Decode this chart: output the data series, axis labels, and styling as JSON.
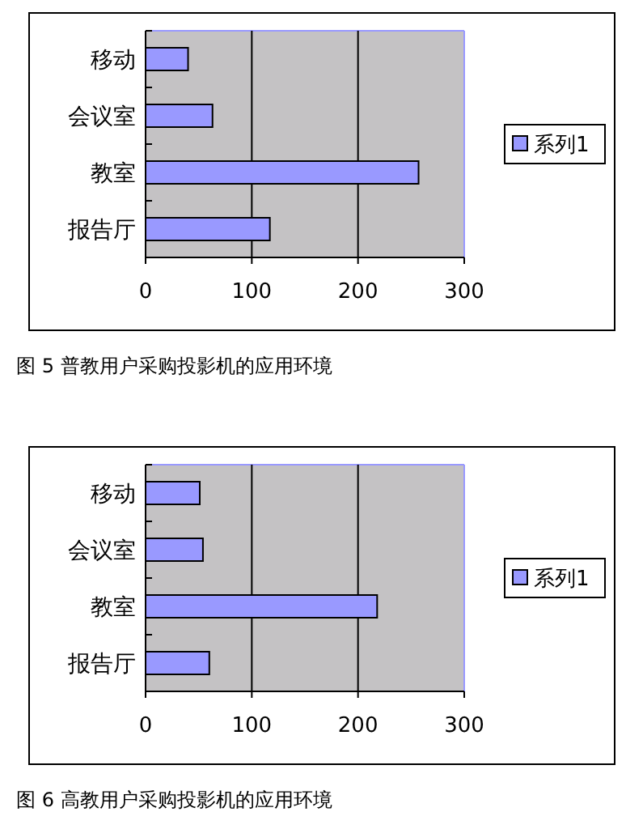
{
  "chart_data": [
    {
      "type": "bar",
      "orientation": "horizontal",
      "title": "图 5 普教用户采购投影机的应用环境",
      "categories": [
        "移动",
        "会议室",
        "教室",
        "报告厅"
      ],
      "series": [
        {
          "name": "系列1",
          "color": "#9999ff",
          "values": [
            40,
            63,
            257,
            117
          ]
        }
      ],
      "xlim": [
        0,
        300
      ],
      "xticks": [
        0,
        100,
        200,
        300
      ],
      "grid": "x",
      "legend": "right"
    },
    {
      "type": "bar",
      "orientation": "horizontal",
      "title": "图 6 高教用户采购投影机的应用环境",
      "categories": [
        "移动",
        "会议室",
        "教室",
        "报告厅"
      ],
      "series": [
        {
          "name": "系列1",
          "color": "#9999ff",
          "values": [
            51,
            54,
            218,
            60
          ]
        }
      ],
      "xlim": [
        0,
        300
      ],
      "xticks": [
        0,
        100,
        200,
        300
      ],
      "grid": "x",
      "legend": "right"
    }
  ]
}
